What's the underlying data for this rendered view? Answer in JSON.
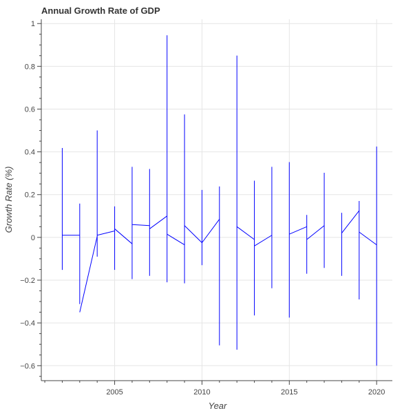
{
  "chart_data": {
    "type": "line",
    "title": "Annual Growth Rate of GDP",
    "xlabel": "Year",
    "ylabel": "Growth Rate (%)",
    "xlim": [
      2000.8,
      2020.9
    ],
    "ylim": [
      -0.67,
      1.02
    ],
    "xticks": [
      2005,
      2010,
      2015,
      2020
    ],
    "yticks": [
      -0.6,
      -0.4,
      -0.2,
      0,
      0.2,
      0.4,
      0.6,
      0.8,
      1
    ],
    "grid": true,
    "legend": "none",
    "colors": {
      "line": "#0000ff",
      "axis": "#444444",
      "grid": "#e5e5e5"
    },
    "x": [
      2002,
      2003,
      2004,
      2005,
      2006,
      2007,
      2008,
      2009,
      2010,
      2011,
      2012,
      2013,
      2014,
      2015,
      2016,
      2017,
      2018,
      2019,
      2020
    ],
    "series": [
      {
        "type": "line",
        "values": [
          0.01,
          0.01,
          0.035,
          0.038,
          0.06,
          0.058,
          0.102,
          0.055,
          -0.022,
          0.085,
          0.05,
          -0.012,
          0.012,
          0.015,
          0.053,
          0.057,
          0.018,
          0.125,
          0.022
        ]
      },
      {
        "type": "vertical-segments",
        "values": [
          [
            -0.152,
            0.418
          ],
          [
            -0.312,
            0.158
          ],
          [
            -0.09,
            0.5
          ],
          [
            -0.152,
            0.145
          ],
          [
            -0.195,
            0.33
          ],
          [
            -0.18,
            0.32
          ],
          [
            -0.21,
            0.945
          ],
          [
            -0.215,
            0.575
          ],
          [
            -0.13,
            0.222
          ],
          [
            -0.505,
            0.238
          ],
          [
            -0.525,
            0.85
          ],
          [
            -0.365,
            0.265
          ],
          [
            -0.238,
            0.33
          ],
          [
            -0.375,
            0.352
          ],
          [
            -0.17,
            0.105
          ],
          [
            -0.143,
            0.302
          ],
          [
            -0.18,
            0.115
          ],
          [
            -0.29,
            0.17
          ],
          [
            -0.6,
            0.425
          ]
        ]
      },
      {
        "type": "segment-ends",
        "values": [
          [
            0.01,
            0.01
          ],
          [
            -0.35,
            0.005
          ],
          [
            0.01,
            0.03
          ],
          [
            0.04,
            -0.03
          ],
          [
            0.06,
            0.055
          ],
          [
            0.04,
            0.1
          ],
          [
            0.015,
            -0.035
          ],
          [
            0.055,
            -0.025
          ],
          [
            -0.025,
            0.085
          ],
          [
            0.05,
            -0.01
          ],
          [
            -0.04,
            0.01
          ],
          [
            0.015,
            0.05
          ],
          [
            -0.01,
            0.055
          ],
          [
            0.02,
            0.125
          ],
          [
            0.025,
            -0.035
          ]
        ],
        "x_pairs": [
          [
            2002,
            2003
          ],
          [
            2003,
            2004
          ],
          [
            2004,
            2005
          ],
          [
            2005,
            2006
          ],
          [
            2006,
            2007
          ],
          [
            2007,
            2008
          ],
          [
            2008,
            2009
          ],
          [
            2009,
            2010
          ],
          [
            2010,
            2011
          ],
          [
            2012,
            2013
          ],
          [
            2013,
            2014
          ],
          [
            2015,
            2016
          ],
          [
            2016,
            2017
          ],
          [
            2018,
            2019
          ],
          [
            2019,
            2020
          ]
        ]
      }
    ]
  }
}
